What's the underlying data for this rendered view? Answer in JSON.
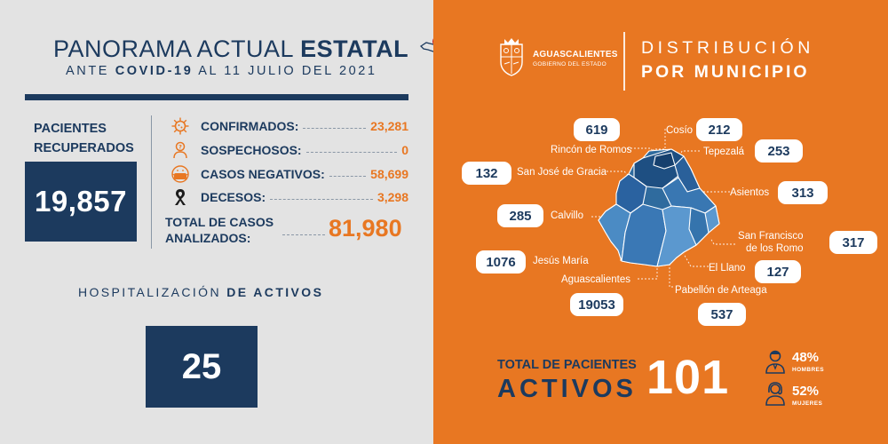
{
  "header": {
    "title_normal": "PANORAMA ACTUAL ",
    "title_bold": "ESTATAL",
    "sub_pre": "ANTE ",
    "sub_bold": "COVID-19",
    "sub_post": " AL 11 JULIO DEL 2021"
  },
  "recovered": {
    "label": "PACIENTES RECUPERADOS",
    "value": "19,857"
  },
  "stats": [
    {
      "label": "CONFIRMADOS:",
      "value": "23,281",
      "icon": "virus-icon"
    },
    {
      "label": "SOSPECHOSOS:",
      "value": "0",
      "icon": "suspect-person-icon"
    },
    {
      "label": "CASOS NEGATIVOS:",
      "value": "58,699",
      "icon": "face-mask-icon"
    },
    {
      "label": "DECESOS:",
      "value": "3,298",
      "icon": "mourning-ribbon-icon"
    }
  ],
  "total_analyzed": {
    "label_line1": "TOTAL DE CASOS",
    "label_line2": "ANALIZADOS:",
    "value": "81,980"
  },
  "hospitalization": {
    "title_normal": "HOSPITALIZACIÓN ",
    "title_bold": "DE ACTIVOS",
    "value": "25"
  },
  "right_header": {
    "state": "AGUASCALIENTES",
    "gov": "GOBIERNO DEL ESTADO",
    "title_line1": "DISTRIBUCIÓN",
    "title_line2": "POR MUNICIPIO"
  },
  "municipalities": [
    {
      "name": "Rincón de Romos",
      "value": "619"
    },
    {
      "name": "Cosío",
      "value": "212"
    },
    {
      "name": "Tepezalá",
      "value": "253"
    },
    {
      "name": "San José de Gracia",
      "value": "132"
    },
    {
      "name": "Asientos",
      "value": "313"
    },
    {
      "name": "Calvillo",
      "value": "285"
    },
    {
      "name_line1": "San Francisco",
      "name_line2": "de los Romo",
      "value": "317"
    },
    {
      "name": "Jesús María",
      "value": "1076"
    },
    {
      "name": "El Llano",
      "value": "127"
    },
    {
      "name": "Aguascalientes",
      "value": "19053"
    },
    {
      "name": "Pabellón de Arteaga",
      "value": "537"
    }
  ],
  "active": {
    "label": "TOTAL DE PACIENTES",
    "word": "ACTIVOS",
    "value": "101"
  },
  "gender": {
    "men_pct": "48%",
    "men_label": "HOMBRES",
    "women_pct": "52%",
    "women_label": "MUJERES"
  },
  "colors": {
    "navy": "#1c3a5e",
    "orange": "#e87722"
  }
}
